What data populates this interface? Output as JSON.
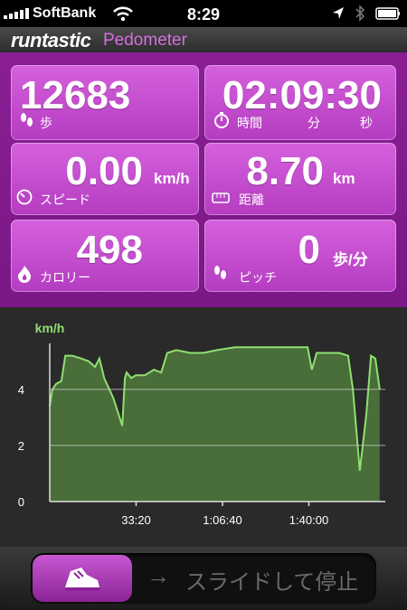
{
  "status_bar": {
    "carrier": "SoftBank",
    "time": "8:29"
  },
  "header": {
    "brand": "runtastic",
    "app": "Pedometer"
  },
  "tiles": [
    {
      "value": "12683",
      "label": "歩"
    },
    {
      "value": "02:09:30",
      "labels": [
        "時間",
        "分",
        "秒"
      ]
    },
    {
      "value": "0.00",
      "unit": "km/h",
      "label": "スピード"
    },
    {
      "value": "8.70",
      "unit": "km",
      "label": "距離"
    },
    {
      "value": "498",
      "label": "カロリー"
    },
    {
      "value": "0",
      "unit": "歩/分",
      "label": "ピッチ"
    }
  ],
  "chart_data": {
    "type": "area",
    "y_label": "km/h",
    "x": [
      0,
      60,
      150,
      270,
      360,
      520,
      730,
      900,
      1050,
      1150,
      1260,
      1470,
      1680,
      1740,
      1780,
      1890,
      1990,
      2200,
      2410,
      2580,
      2720,
      2930,
      3250,
      3560,
      3870,
      4290,
      4610,
      4920,
      5130,
      5550,
      5970,
      6070,
      6180,
      6390,
      6700,
      6910,
      7020,
      7180,
      7330,
      7440,
      7540,
      7640
    ],
    "values": [
      3.4,
      4.0,
      4.2,
      4.3,
      5.2,
      5.2,
      5.1,
      5.0,
      4.8,
      5.1,
      4.4,
      3.7,
      2.7,
      4.4,
      4.6,
      4.4,
      4.5,
      4.5,
      4.7,
      4.6,
      5.3,
      5.4,
      5.3,
      5.3,
      5.4,
      5.5,
      5.5,
      5.5,
      5.5,
      5.5,
      5.5,
      4.7,
      5.3,
      5.3,
      5.3,
      5.2,
      4.0,
      1.1,
      3.1,
      5.2,
      5.1,
      4.0
    ],
    "color": "#8fe070",
    "xlim": [
      0,
      7770
    ],
    "ylim": [
      0,
      5.8
    ],
    "yticks": [
      0,
      2,
      4
    ],
    "xticks": [
      {
        "value": 2000,
        "label": "33:20"
      },
      {
        "value": 4000,
        "label": "1:06:40"
      },
      {
        "value": 6000,
        "label": "1:40:00"
      }
    ],
    "grid": true
  },
  "slider": {
    "text": "スライドして停止"
  }
}
